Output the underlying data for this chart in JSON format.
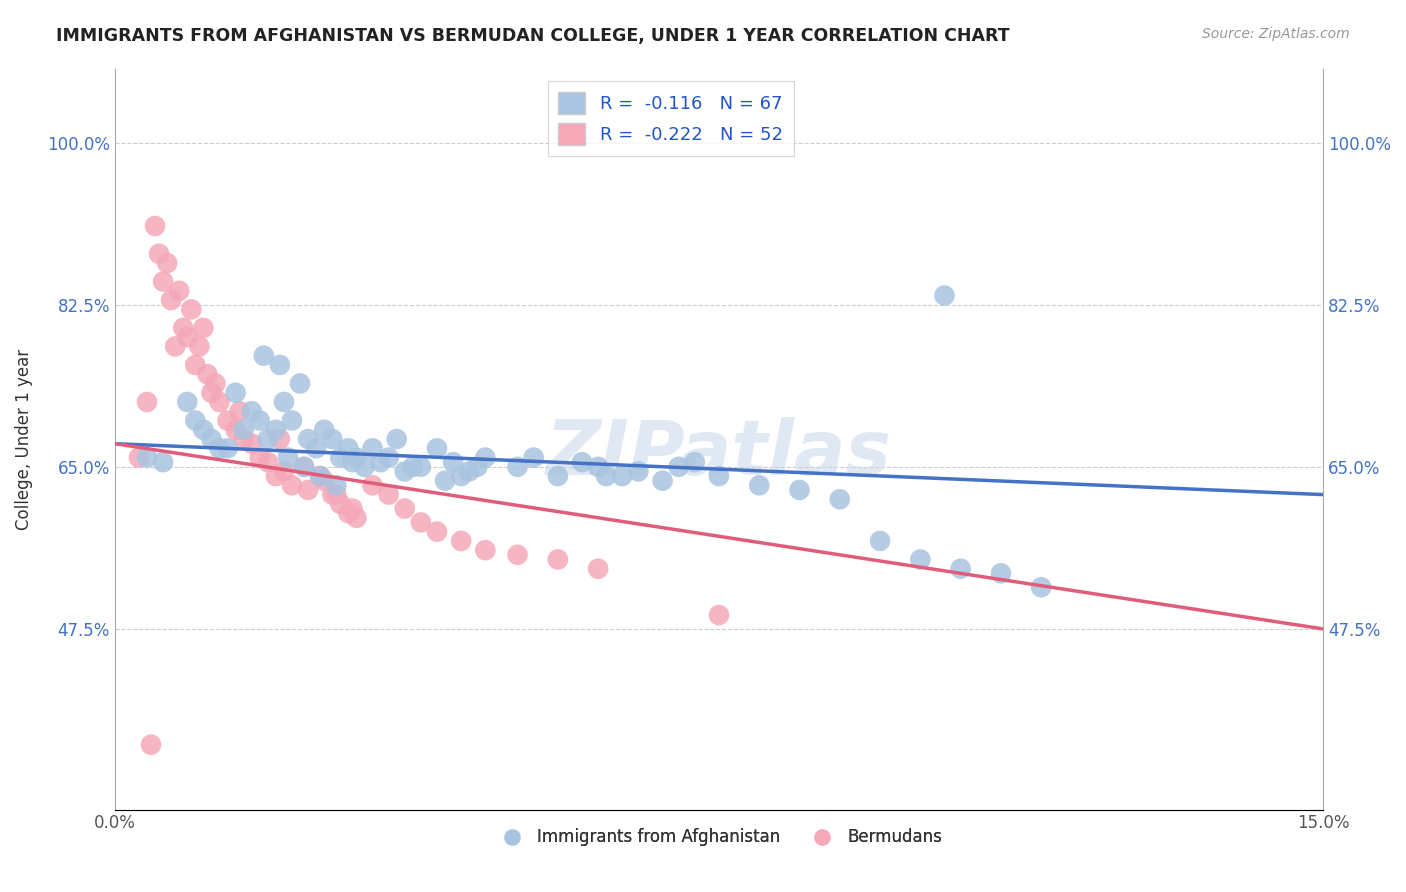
{
  "title": "IMMIGRANTS FROM AFGHANISTAN VS BERMUDAN COLLEGE, UNDER 1 YEAR CORRELATION CHART",
  "source": "Source: ZipAtlas.com",
  "ylabel": "College, Under 1 year",
  "xlim": [
    0.0,
    15.0
  ],
  "ylim": [
    28.0,
    108.0
  ],
  "yticks": [
    47.5,
    65.0,
    82.5,
    100.0
  ],
  "xtick_pos": [
    0.0,
    3.0,
    6.0,
    9.0,
    12.0,
    15.0
  ],
  "xtick_labels": [
    "0.0%",
    "",
    "",
    "",
    "",
    "15.0%"
  ],
  "legend_labels": [
    "Immigrants from Afghanistan",
    "Bermudans"
  ],
  "blue_color": "#a8c4e0",
  "pink_color": "#f4a8b8",
  "blue_line_color": "#4472c4",
  "pink_line_color": "#e05c7a",
  "R_blue": -0.116,
  "N_blue": 67,
  "R_pink": -0.222,
  "N_pink": 52,
  "blue_line_x0": 0.0,
  "blue_line_y0": 67.5,
  "blue_line_x1": 15.0,
  "blue_line_y1": 62.0,
  "pink_line_x0": 0.0,
  "pink_line_y0": 67.5,
  "pink_line_x1": 15.0,
  "pink_line_y1": 47.5,
  "blue_x": [
    0.4,
    0.6,
    0.9,
    1.0,
    1.2,
    1.3,
    1.5,
    1.6,
    1.7,
    1.8,
    1.9,
    2.0,
    2.1,
    2.2,
    2.3,
    2.4,
    2.5,
    2.6,
    2.7,
    2.8,
    2.9,
    3.0,
    3.1,
    3.2,
    3.4,
    3.5,
    3.7,
    3.8,
    4.0,
    4.2,
    4.3,
    4.5,
    4.6,
    5.0,
    5.2,
    5.5,
    5.8,
    6.0,
    6.3,
    6.5,
    6.8,
    7.0,
    7.5,
    8.0,
    8.5,
    9.0,
    9.5,
    10.0,
    10.5,
    11.0,
    11.5,
    1.1,
    1.4,
    2.15,
    2.35,
    2.55,
    2.75,
    2.95,
    3.3,
    3.6,
    4.1,
    4.4,
    6.1,
    7.2,
    1.85,
    2.05,
    10.3
  ],
  "blue_y": [
    66.0,
    65.5,
    72.0,
    70.0,
    68.0,
    67.0,
    73.0,
    69.0,
    71.0,
    70.0,
    68.0,
    69.0,
    72.0,
    70.0,
    74.0,
    68.0,
    67.0,
    69.0,
    68.0,
    66.0,
    67.0,
    66.0,
    65.0,
    67.0,
    66.0,
    68.0,
    65.0,
    65.0,
    67.0,
    65.5,
    64.0,
    65.0,
    66.0,
    65.0,
    66.0,
    64.0,
    65.5,
    65.0,
    64.0,
    64.5,
    63.5,
    65.0,
    64.0,
    63.0,
    62.5,
    61.5,
    57.0,
    55.0,
    54.0,
    53.5,
    52.0,
    69.0,
    67.0,
    66.0,
    65.0,
    64.0,
    63.0,
    65.5,
    65.5,
    64.5,
    63.5,
    64.5,
    64.0,
    65.5,
    77.0,
    76.0,
    83.5
  ],
  "pink_x": [
    0.3,
    0.4,
    0.5,
    0.55,
    0.6,
    0.65,
    0.7,
    0.75,
    0.8,
    0.85,
    0.9,
    0.95,
    1.0,
    1.05,
    1.1,
    1.15,
    1.2,
    1.3,
    1.4,
    1.5,
    1.6,
    1.7,
    1.8,
    1.9,
    2.0,
    2.1,
    2.2,
    2.4,
    2.6,
    2.7,
    2.8,
    2.9,
    3.0,
    3.2,
    3.4,
    3.6,
    3.8,
    4.0,
    4.3,
    4.6,
    5.0,
    5.5,
    6.0,
    1.25,
    1.55,
    2.05,
    2.35,
    2.55,
    2.75,
    2.95,
    7.5,
    0.45
  ],
  "pink_y": [
    66.0,
    72.0,
    91.0,
    88.0,
    85.0,
    87.0,
    83.0,
    78.0,
    84.0,
    80.0,
    79.0,
    82.0,
    76.0,
    78.0,
    80.0,
    75.0,
    73.0,
    72.0,
    70.0,
    69.0,
    68.0,
    67.5,
    66.0,
    65.5,
    64.0,
    64.5,
    63.0,
    62.5,
    63.5,
    62.0,
    61.0,
    60.0,
    59.5,
    63.0,
    62.0,
    60.5,
    59.0,
    58.0,
    57.0,
    56.0,
    55.5,
    55.0,
    54.0,
    74.0,
    71.0,
    68.0,
    65.0,
    64.0,
    62.0,
    60.5,
    49.0,
    35.0
  ]
}
